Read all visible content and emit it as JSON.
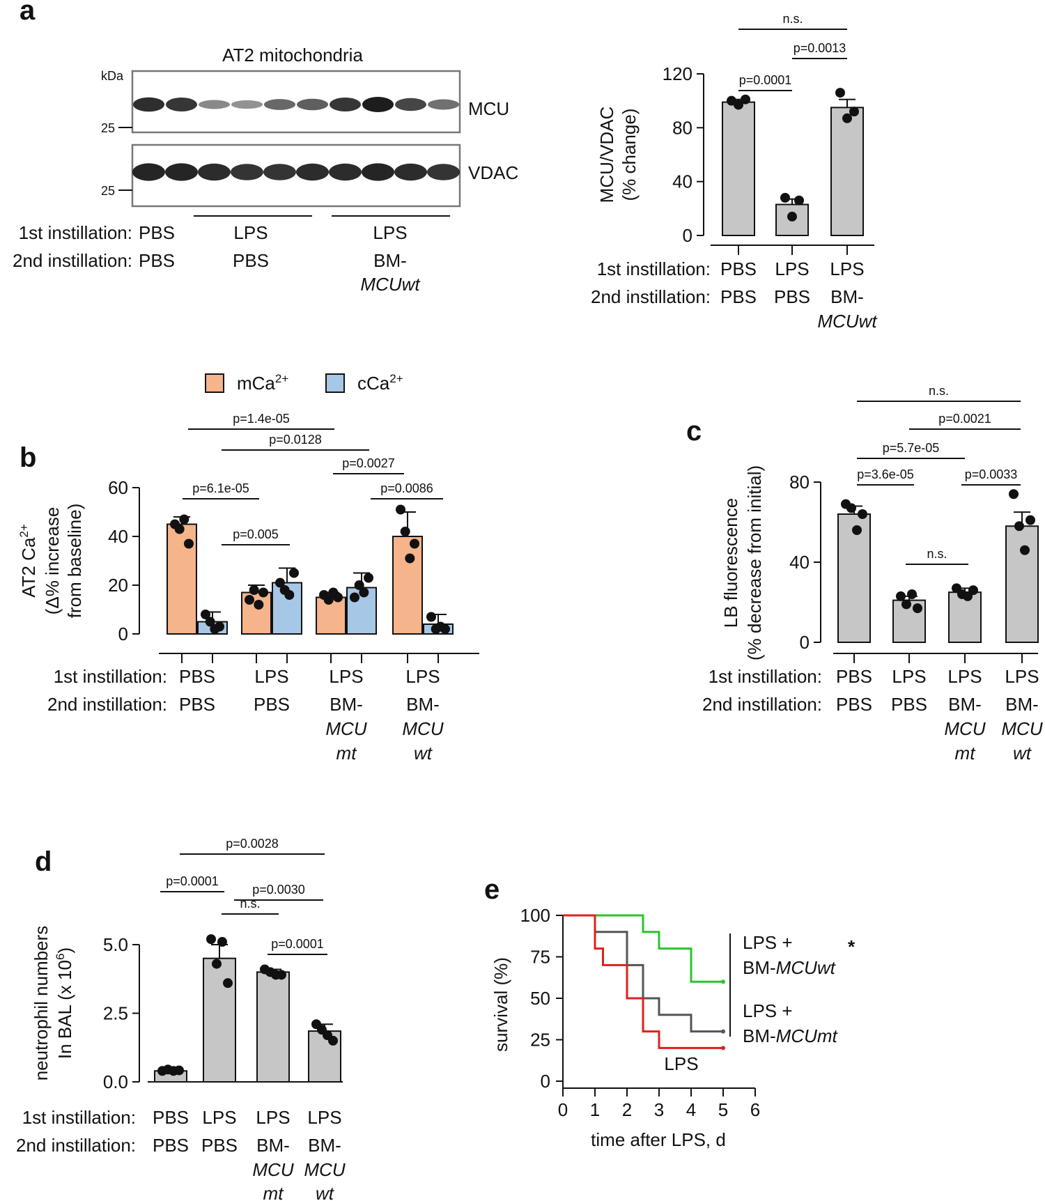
{
  "panel_letters": {
    "a": "a",
    "b": "b",
    "c": "c",
    "d": "d",
    "e": "e"
  },
  "row_labels": {
    "first": "1st instillation:",
    "second": "2nd instillation:"
  },
  "blot": {
    "title": "AT2 mitochondria",
    "kda": "kDa",
    "marker_mcu": "25",
    "marker_vdac": "25",
    "band_mcu": "MCU",
    "band_vdac": "VDAC",
    "first": [
      "PBS",
      "LPS",
      "LPS"
    ],
    "second": [
      "PBS",
      "PBS",
      "BM-"
    ],
    "second_italic": [
      "",
      "",
      "MCUwt"
    ],
    "mcu_intensity": [
      0.9,
      0.85,
      0.35,
      0.3,
      0.55,
      0.6,
      0.85,
      1.0,
      0.75,
      0.5
    ],
    "vdac_intensity": [
      0.95,
      0.95,
      0.9,
      0.85,
      0.85,
      0.9,
      0.9,
      0.95,
      0.9,
      0.85
    ]
  },
  "chart_data": [
    {
      "panel": "a",
      "type": "bar",
      "ylabel": "MCU/VDAC",
      "ylabel2": "(% change)",
      "ylim": [
        0,
        120
      ],
      "yticks": [
        0,
        40,
        80,
        120
      ],
      "categories_first": [
        "PBS",
        "LPS",
        "LPS"
      ],
      "categories_second": [
        "PBS",
        "PBS",
        "BM-"
      ],
      "categories_second_italic": [
        "",
        "",
        "MCUwt"
      ],
      "values": [
        99,
        23,
        95
      ],
      "errors": [
        2,
        4,
        6
      ],
      "points": [
        [
          100,
          97,
          101
        ],
        [
          28,
          14,
          26
        ],
        [
          106,
          87,
          92
        ]
      ],
      "pvalues": [
        {
          "from": 0,
          "to": 1,
          "label": "p=0.0001",
          "level": 0
        },
        {
          "from": 1,
          "to": 2,
          "label": "p=0.0013",
          "level": 1
        },
        {
          "from": 0,
          "to": 2,
          "label": "n.s.",
          "level": 2
        }
      ]
    },
    {
      "panel": "b",
      "type": "bar",
      "legend": [
        "mCa2+",
        "cCa2+"
      ],
      "legend_base": [
        "mCa",
        "cCa"
      ],
      "legend_sup": [
        "2+",
        "2+"
      ],
      "ylabel_base": "AT2 Ca",
      "ylabel_sup": "2+",
      "ylabel2": "(Δ% increase",
      "ylabel3": "from baseline)",
      "ylim": [
        0,
        60
      ],
      "yticks": [
        0,
        20,
        40,
        60
      ],
      "categories_first": [
        "PBS",
        "LPS",
        "LPS",
        "LPS"
      ],
      "categories_second": [
        "PBS",
        "PBS",
        "BM-",
        "BM-"
      ],
      "categories_second_italic1": [
        "",
        "",
        "MCU",
        "MCU"
      ],
      "categories_second_italic2": [
        "",
        "",
        "mt",
        "wt"
      ],
      "series": [
        {
          "name": "mCa2+",
          "values": [
            45,
            17,
            15,
            40
          ],
          "errors": [
            3,
            3,
            2,
            10
          ],
          "points": [
            [
              45,
              43,
              47,
              37
            ],
            [
              14,
              18,
              12,
              17
            ],
            [
              16,
              14,
              17,
              15
            ],
            [
              51,
              42,
              31,
              37
            ]
          ]
        },
        {
          "name": "cCa2+",
          "values": [
            5,
            21,
            19,
            4
          ],
          "errors": [
            4,
            6,
            6,
            4
          ],
          "points": [
            [
              8,
              5,
              2,
              3
            ],
            [
              21,
              18,
              16,
              25
            ],
            [
              15,
              20,
              17,
              23
            ],
            [
              7,
              2,
              3,
              2
            ]
          ]
        }
      ],
      "pvalues": [
        {
          "x1": [
            0,
            0
          ],
          "x2": [
            1,
            0
          ],
          "label": "p=6.1e-05",
          "level": 0
        },
        {
          "x1": [
            1,
            0
          ],
          "x2": [
            1,
            1
          ],
          "label": "p=0.005",
          "level": -1
        },
        {
          "x1": [
            3,
            0
          ],
          "x2": [
            3,
            1
          ],
          "label": "p=0.0086",
          "level": 0
        },
        {
          "x1": [
            2,
            0
          ],
          "x2": [
            3,
            0
          ],
          "label": "p=0.0027",
          "level": 1
        },
        {
          "x1": [
            0,
            1
          ],
          "x2": [
            2,
            1
          ],
          "label": "p=0.0128",
          "level": 2
        },
        {
          "x1": [
            0,
            0
          ],
          "x2": [
            2,
            0
          ],
          "label": "p=1.4e-05",
          "level": 3
        }
      ]
    },
    {
      "panel": "c",
      "type": "bar",
      "ylabel": "LB fluorescence",
      "ylabel2": "(% decrease from initial)",
      "ylim": [
        0,
        80
      ],
      "yticks": [
        0,
        40,
        80
      ],
      "categories_first": [
        "PBS",
        "LPS",
        "LPS",
        "LPS"
      ],
      "categories_second": [
        "PBS",
        "PBS",
        "BM-",
        "BM-"
      ],
      "categories_second_italic1": [
        "",
        "",
        "MCU",
        "MCU"
      ],
      "categories_second_italic2": [
        "",
        "",
        "mt",
        "wt"
      ],
      "values": [
        64,
        21,
        25,
        58
      ],
      "errors": [
        4,
        2,
        2,
        7
      ],
      "points": [
        [
          69,
          67,
          56,
          64
        ],
        [
          23,
          19,
          24,
          17
        ],
        [
          27,
          24,
          23,
          26
        ],
        [
          74,
          58,
          46,
          61
        ]
      ],
      "pvalues": [
        {
          "from": 1,
          "to": 2,
          "label": "n.s.",
          "level": -1
        },
        {
          "from": 0,
          "to": 1,
          "label": "p=3.6e-05",
          "level": 0
        },
        {
          "from": 2,
          "to": 3,
          "label": "p=0.0033",
          "level": 0
        },
        {
          "from": 0,
          "to": 2,
          "label": "p=5.7e-05",
          "level": 1
        },
        {
          "from": 1,
          "to": 3,
          "label": "p=0.0021",
          "level": 2
        },
        {
          "from": 0,
          "to": 3,
          "label": "n.s.",
          "level": 3
        }
      ]
    },
    {
      "panel": "d",
      "type": "bar",
      "ylabel": "neutrophil numbers",
      "ylabel2_base": "In BAL (x 10",
      "ylabel2_sup": "6",
      "ylabel2_end": ")",
      "ylim": [
        0,
        5
      ],
      "yticks": [
        0,
        2.5,
        5
      ],
      "ytick_labels": [
        "0.0",
        "2.5",
        "5.0"
      ],
      "categories_first": [
        "PBS",
        "LPS",
        "LPS",
        "LPS"
      ],
      "categories_second": [
        "PBS",
        "PBS",
        "BM-",
        "BM-"
      ],
      "categories_second_italic1": [
        "",
        "",
        "MCU",
        "MCU"
      ],
      "categories_second_italic2": [
        "",
        "",
        "mt",
        "wt"
      ],
      "values": [
        0.4,
        4.5,
        4.0,
        1.85
      ],
      "errors": [
        0.05,
        0.5,
        0.1,
        0.25
      ],
      "points": [
        [
          0.4,
          0.45,
          0.4,
          0.42
        ],
        [
          5.2,
          4.3,
          5.1,
          3.6
        ],
        [
          4.1,
          4.0,
          3.9,
          3.9
        ],
        [
          2.1,
          1.9,
          1.7,
          1.5
        ]
      ],
      "pvalues": [
        {
          "from": 2,
          "to": 3,
          "label": "p=0.0001",
          "level": 0
        },
        {
          "from": 1,
          "to": 2,
          "label": "n.s.",
          "level": 1
        },
        {
          "from": 0,
          "to": 1,
          "label": "p=0.0001",
          "level": 2
        },
        {
          "from": 1,
          "to": 3,
          "label": "p=0.0030",
          "level": 2
        },
        {
          "from": 0,
          "to": 3,
          "label": "p=0.0028",
          "level": 3
        }
      ]
    },
    {
      "panel": "e",
      "type": "line",
      "xlabel": "time after LPS, d",
      "ylabel": "survival (%)",
      "xlim": [
        0,
        6
      ],
      "ylim": [
        0,
        100
      ],
      "xticks": [
        0,
        1,
        2,
        3,
        4,
        5,
        6
      ],
      "yticks": [
        0,
        25,
        50,
        75,
        100
      ],
      "series": [
        {
          "name": "LPS + BM-MCUwt",
          "label_line1": "LPS +",
          "label_base": "BM-",
          "label_italic": "MCUwt",
          "color": "#2bc42b",
          "x": [
            0,
            2.5,
            2.5,
            3,
            3,
            4,
            4,
            5
          ],
          "y": [
            100,
            100,
            90,
            90,
            80,
            80,
            60,
            60
          ]
        },
        {
          "name": "LPS + BM-MCUmt",
          "label_line1": "LPS +",
          "label_base": "BM-",
          "label_italic": "MCUmt",
          "color": "#555555",
          "x": [
            0,
            1,
            1,
            2,
            2,
            2.5,
            2.5,
            3,
            3,
            4,
            4,
            5
          ],
          "y": [
            100,
            100,
            90,
            90,
            70,
            70,
            50,
            50,
            40,
            40,
            30,
            30
          ]
        },
        {
          "name": "LPS",
          "label_line1": "LPS",
          "color": "#e01f1f",
          "x": [
            0,
            1,
            1,
            1.25,
            1.25,
            2,
            2,
            2.5,
            2.5,
            3,
            3,
            5
          ],
          "y": [
            100,
            100,
            80,
            80,
            70,
            70,
            50,
            50,
            30,
            30,
            20,
            20
          ]
        }
      ],
      "significance": "*"
    }
  ]
}
